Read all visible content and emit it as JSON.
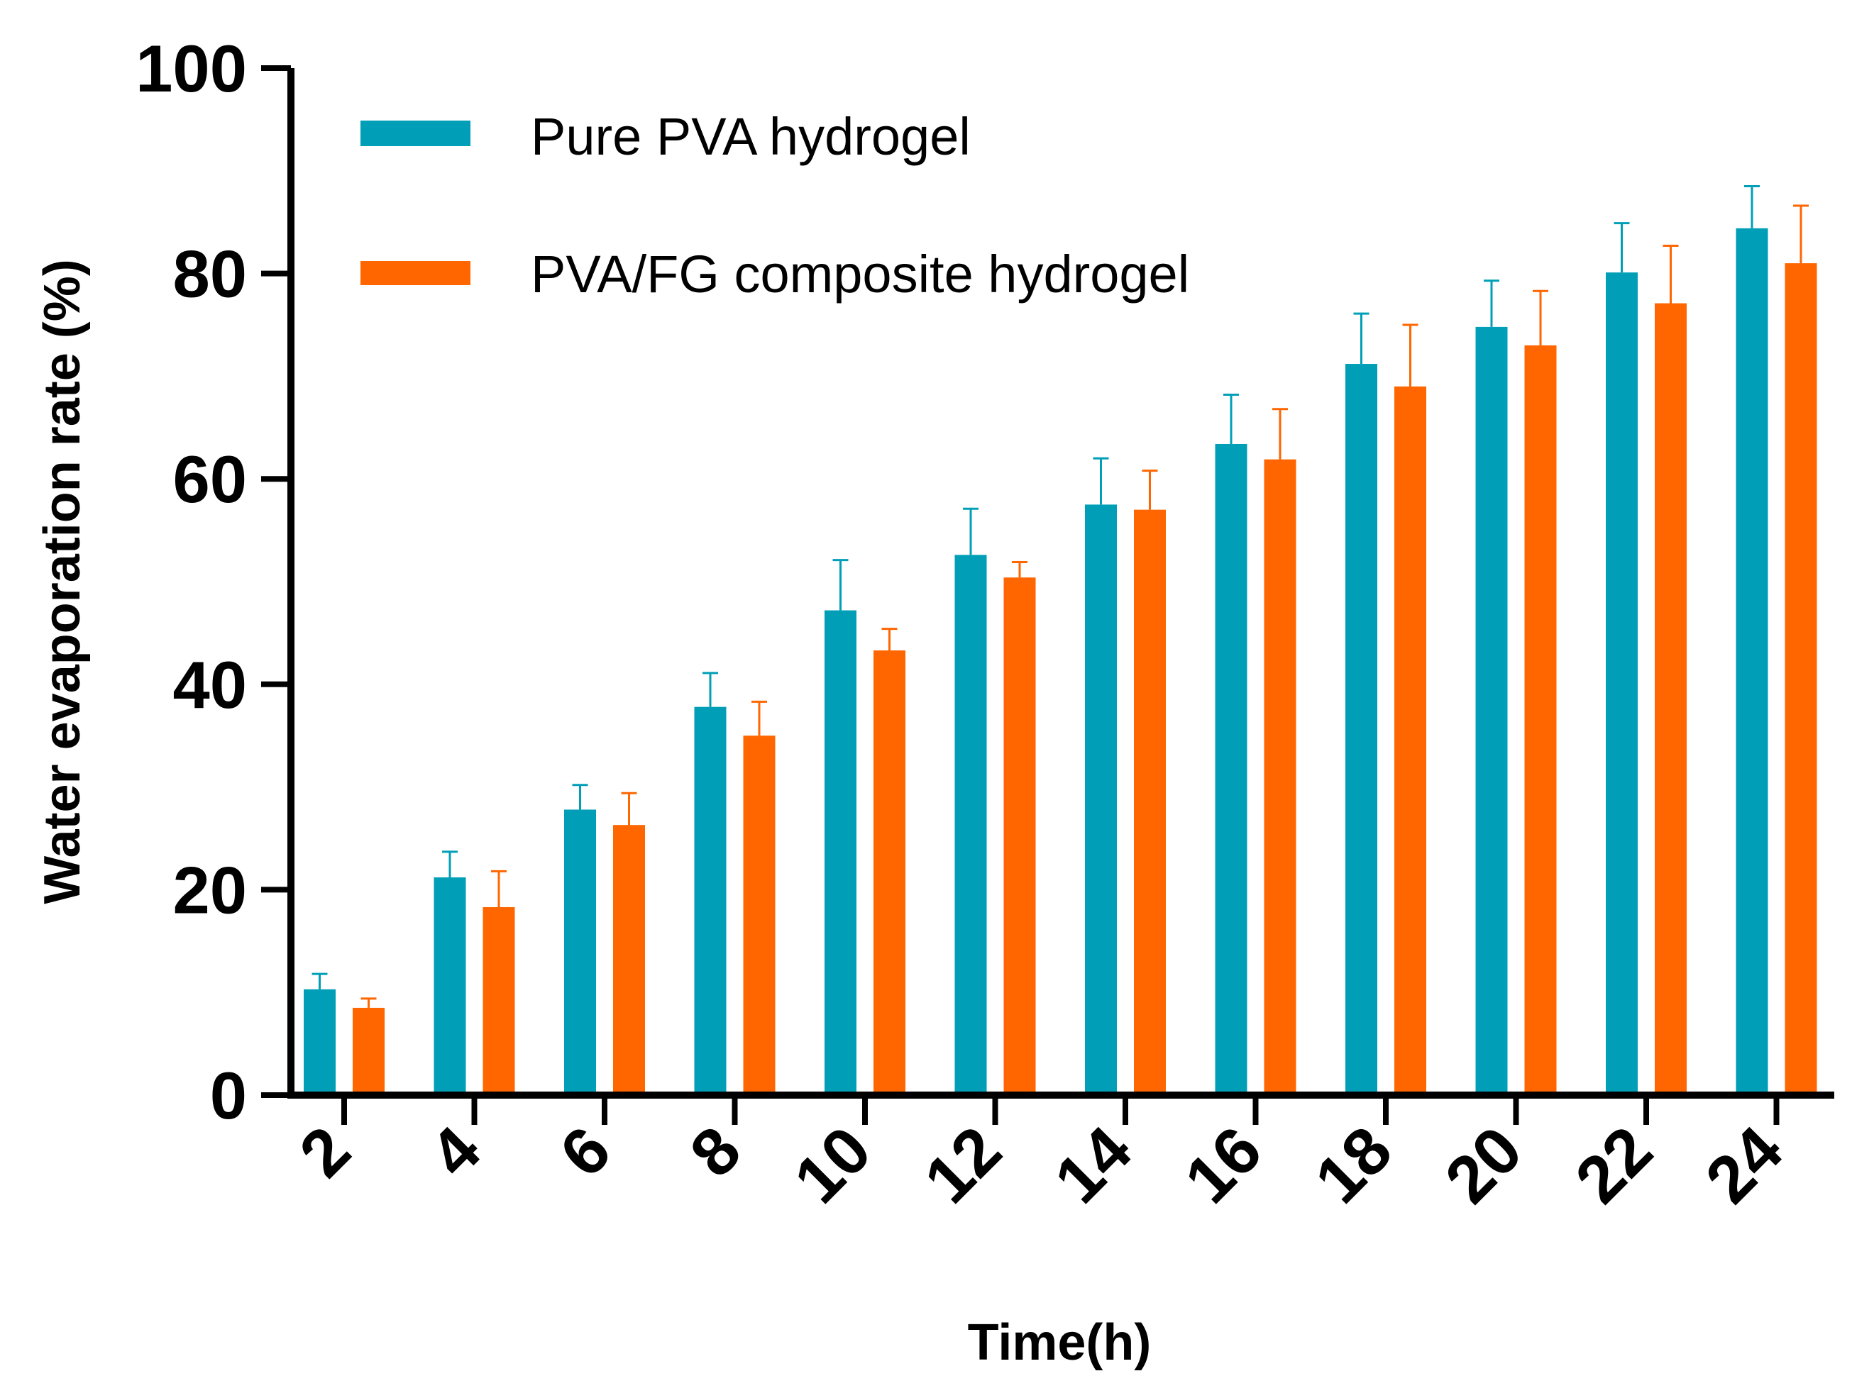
{
  "chart_data": {
    "type": "bar",
    "title": "",
    "xlabel": "Time(h)",
    "ylabel": "Water evaporation rate (%)",
    "ylim": [
      0,
      100
    ],
    "yticks": [
      "0",
      "20",
      "40",
      "60",
      "80",
      "100"
    ],
    "categories": [
      "2",
      "4",
      "6",
      "8",
      "10",
      "12",
      "14",
      "16",
      "18",
      "20",
      "22",
      "24"
    ],
    "legend_position": "top-left",
    "series": [
      {
        "name": "Pure PVA hydrogel",
        "color": "#009fb7",
        "values": [
          10.3,
          21.2,
          27.8,
          37.8,
          47.2,
          52.6,
          57.5,
          63.4,
          71.2,
          74.8,
          80.1,
          84.4
        ],
        "errors": [
          1.5,
          2.5,
          2.4,
          3.3,
          4.9,
          4.5,
          4.5,
          4.8,
          4.9,
          4.5,
          4.8,
          4.1
        ]
      },
      {
        "name": "PVA/FG composite hydrogel",
        "color": "#ff6600",
        "values": [
          8.5,
          18.3,
          26.3,
          35.0,
          43.3,
          50.4,
          57.0,
          61.9,
          69.0,
          73.0,
          77.1,
          81.0
        ],
        "errors": [
          0.9,
          3.5,
          3.1,
          3.3,
          2.1,
          1.5,
          3.8,
          4.9,
          6.0,
          5.3,
          5.6,
          5.6
        ]
      }
    ]
  }
}
